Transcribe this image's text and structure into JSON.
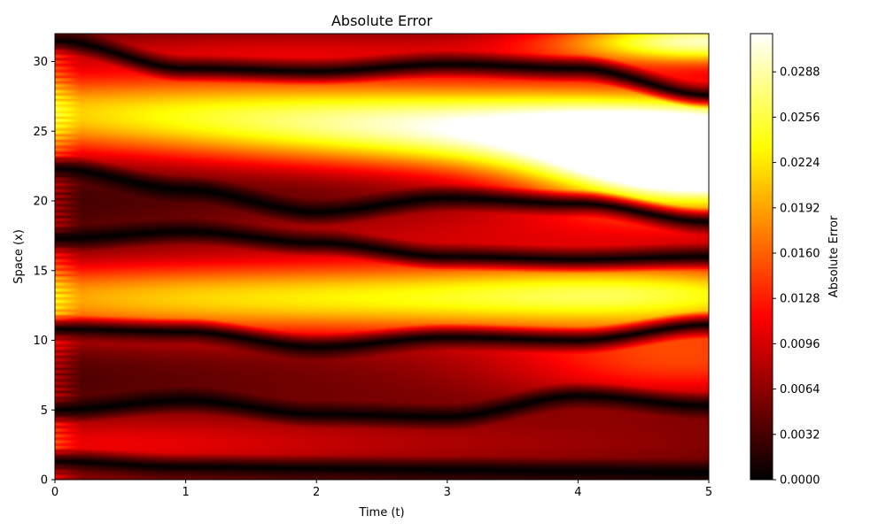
{
  "chart_data": {
    "type": "heatmap",
    "title": "Absolute Error",
    "xlabel": "Time (t)",
    "ylabel": "Space (x)",
    "xlim": [
      0,
      5
    ],
    "ylim": [
      0,
      32
    ],
    "x_ticks": [
      "0",
      "1",
      "2",
      "3",
      "4",
      "5"
    ],
    "y_ticks": [
      "0",
      "5",
      "10",
      "15",
      "20",
      "25",
      "30"
    ],
    "colormap": "hot",
    "colorbar": {
      "label": "Absolute Error",
      "range": [
        0,
        0.0315
      ],
      "ticks": [
        "0.0000",
        "0.0032",
        "0.0064",
        "0.0096",
        "0.0128",
        "0.0160",
        "0.0192",
        "0.0224",
        "0.0256",
        "0.0288"
      ]
    },
    "zero_error_curves": [
      {
        "t": [
          0,
          1,
          2,
          3,
          4,
          5
        ],
        "x": [
          1.3,
          0.9,
          0.8,
          0.7,
          0.6,
          0.5
        ]
      },
      {
        "t": [
          0,
          1,
          2,
          3,
          4,
          5
        ],
        "x": [
          5.0,
          5.7,
          4.7,
          4.5,
          6.0,
          5.3
        ]
      },
      {
        "t": [
          0,
          1,
          2,
          3,
          4,
          5
        ],
        "x": [
          10.8,
          10.6,
          9.5,
          10.2,
          10.0,
          11.1
        ]
      },
      {
        "t": [
          0,
          1,
          2,
          3,
          4,
          5
        ],
        "x": [
          17.3,
          17.8,
          17.0,
          16.0,
          15.8,
          16.0
        ]
      },
      {
        "t": [
          0,
          1,
          2,
          3,
          4,
          5
        ],
        "x": [
          22.3,
          20.8,
          19.2,
          20.2,
          19.8,
          18.5
        ]
      },
      {
        "t": [
          0,
          1,
          2,
          3,
          4,
          5
        ],
        "x": [
          31.5,
          29.5,
          29.3,
          29.8,
          29.5,
          27.6
        ]
      }
    ]
  }
}
